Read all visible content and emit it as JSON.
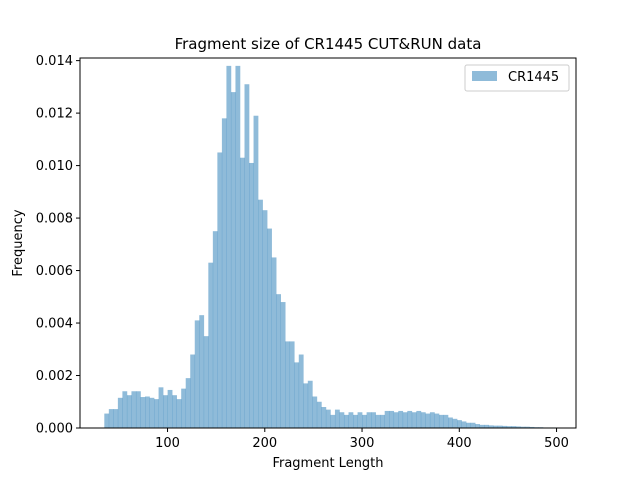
{
  "chart_data": {
    "type": "bar",
    "title": "Fragment size of CR1445 CUT&RUN data",
    "xlabel": "Fragment Length",
    "ylabel": "Frequency",
    "xlim": [
      10,
      520
    ],
    "ylim": [
      0,
      0.0141
    ],
    "xticks": [
      100,
      200,
      300,
      400,
      500
    ],
    "yticks": [
      0.0,
      0.002,
      0.004,
      0.006,
      0.008,
      0.01,
      0.012,
      0.014
    ],
    "ytick_labels": [
      "0.000",
      "0.002",
      "0.004",
      "0.006",
      "0.008",
      "0.010",
      "0.012",
      "0.014"
    ],
    "legend_position": "top-right",
    "bin_start": 35,
    "bin_width": 4.65,
    "series": [
      {
        "name": "CR1445",
        "color": "#1f77b4",
        "opacity": 0.5,
        "values": [
          0.00055,
          0.00072,
          0.00072,
          0.00115,
          0.0014,
          0.00125,
          0.0014,
          0.0014,
          0.00118,
          0.0012,
          0.00115,
          0.0011,
          0.00155,
          0.00125,
          0.00145,
          0.00125,
          0.0011,
          0.0015,
          0.0019,
          0.0028,
          0.0041,
          0.0043,
          0.0035,
          0.0063,
          0.0075,
          0.0105,
          0.0118,
          0.0138,
          0.0128,
          0.0138,
          0.0103,
          0.0131,
          0.0101,
          0.0119,
          0.0087,
          0.0083,
          0.0076,
          0.0065,
          0.0051,
          0.0048,
          0.0033,
          0.0033,
          0.0025,
          0.0028,
          0.0017,
          0.0018,
          0.0012,
          0.001,
          0.0008,
          0.0007,
          0.0005,
          0.0007,
          0.0006,
          0.0005,
          0.0006,
          0.0005,
          0.0006,
          0.0005,
          0.0006,
          0.0006,
          0.0005,
          0.0005,
          0.00065,
          0.00065,
          0.0006,
          0.00065,
          0.0006,
          0.00065,
          0.0006,
          0.00065,
          0.0006,
          0.00055,
          0.0006,
          0.00055,
          0.0005,
          0.0005,
          0.0004,
          0.00035,
          0.0003,
          0.00025,
          0.0002,
          0.0002,
          0.00015,
          0.00012,
          0.00012,
          0.0001,
          9e-05,
          9e-05,
          8e-05,
          7e-05,
          7e-05,
          6e-05,
          5e-05,
          5e-05,
          4e-05,
          3e-05,
          3e-05,
          2e-05,
          2e-05,
          2e-05
        ]
      }
    ]
  }
}
